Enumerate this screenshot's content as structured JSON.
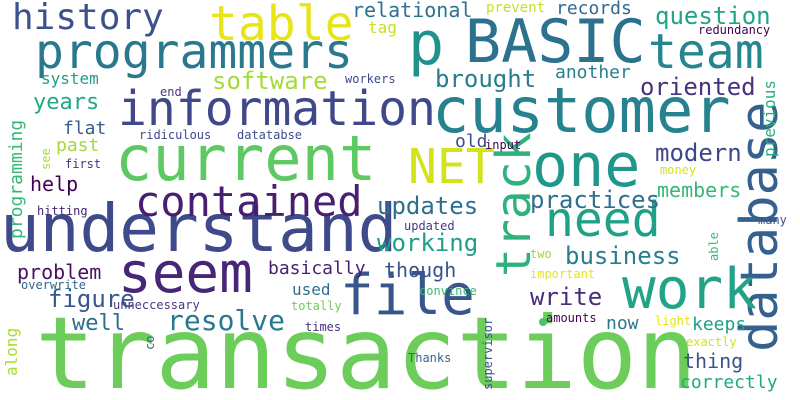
{
  "words": [
    {
      "text": "transaction",
      "color": "#6ccd5a"
    },
    {
      "text": "understand",
      "color": "#3e4a89"
    },
    {
      "text": "current",
      "color": "#5ec962"
    },
    {
      "text": "customer",
      "color": "#26828e"
    },
    {
      "text": "information",
      "color": "#3f4889"
    },
    {
      "text": "programmers",
      "color": "#2a788e"
    },
    {
      "text": "BASIC",
      "color": "#2c718e"
    },
    {
      "text": "one",
      "color": "#1f988b"
    },
    {
      "text": "seem",
      "color": "#482677"
    },
    {
      "text": "database",
      "color": "#34618d"
    },
    {
      "text": "file",
      "color": "#39568c"
    },
    {
      "text": "work",
      "color": "#20a386"
    },
    {
      "text": "p",
      "color": "#21918c"
    },
    {
      "text": "track",
      "color": "#2db27d"
    },
    {
      "text": "team",
      "color": "#24868e"
    },
    {
      "text": "table",
      "color": "#e7e419"
    },
    {
      "text": "NET",
      "color": "#d2e21b"
    },
    {
      "text": "need",
      "color": "#1fa187"
    },
    {
      "text": "contained",
      "color": "#481f70"
    },
    {
      "text": "history",
      "color": "#3b528b"
    },
    {
      "text": "resolve",
      "color": "#2a788e"
    },
    {
      "text": "software",
      "color": "#a5db36"
    },
    {
      "text": "oriented",
      "color": "#46337e"
    },
    {
      "text": "question",
      "color": "#20a386"
    },
    {
      "text": "updates",
      "color": "#2d708e"
    },
    {
      "text": "modern",
      "color": "#3f4788"
    },
    {
      "text": "working",
      "color": "#1f9e89"
    },
    {
      "text": "write",
      "color": "#472d7b"
    },
    {
      "text": "business",
      "color": "#287d8e"
    },
    {
      "text": "practices",
      "color": "#2e6f8e"
    },
    {
      "text": "brought",
      "color": "#287c8e"
    },
    {
      "text": "figure",
      "color": "#38588c"
    },
    {
      "text": "years",
      "color": "#22a884"
    },
    {
      "text": "problem",
      "color": "#471164"
    },
    {
      "text": "relational",
      "color": "#2c728e"
    },
    {
      "text": "basically",
      "color": "#482173"
    },
    {
      "text": "though",
      "color": "#3a548c"
    },
    {
      "text": "well",
      "color": "#2d708e"
    },
    {
      "text": "members",
      "color": "#35b779"
    },
    {
      "text": "programming",
      "color": "#35b779"
    },
    {
      "text": "help",
      "color": "#440154"
    },
    {
      "text": "thing",
      "color": "#3b528b"
    },
    {
      "text": "keeps",
      "color": "#1fa088"
    },
    {
      "text": "correctly",
      "color": "#22a785"
    },
    {
      "text": "now",
      "color": "#297a8e"
    },
    {
      "text": "records",
      "color": "#31688e"
    },
    {
      "text": "flat",
      "color": "#365d8d"
    },
    {
      "text": "past",
      "color": "#9fda3a"
    },
    {
      "text": "along",
      "color": "#a8db34"
    },
    {
      "text": "another",
      "color": "#27808e"
    },
    {
      "text": "old",
      "color": "#3c4f8a"
    },
    {
      "text": "used",
      "color": "#2e6e8e"
    },
    {
      "text": "system",
      "color": "#1f9e89"
    },
    {
      "text": "previous",
      "color": "#2ab07f"
    },
    {
      "text": "tag",
      "color": "#c8e020"
    },
    {
      "text": "prevent",
      "color": "#c2df23"
    },
    {
      "text": "redundancy",
      "color": "#440154"
    },
    {
      "text": "workers",
      "color": "#3e4a89"
    },
    {
      "text": "end",
      "color": "#453882"
    },
    {
      "text": "ridiculous",
      "color": "#3f4788"
    },
    {
      "text": "datatabse",
      "color": "#3c4f8a"
    },
    {
      "text": "see",
      "color": "#a0da39"
    },
    {
      "text": "first",
      "color": "#46307e"
    },
    {
      "text": "hitting",
      "color": "#482475"
    },
    {
      "text": "updated",
      "color": "#443983"
    },
    {
      "text": "input",
      "color": "#440154"
    },
    {
      "text": "money",
      "color": "#d8e219"
    },
    {
      "text": "two",
      "color": "#9bd93c"
    },
    {
      "text": "important",
      "color": "#e5e419"
    },
    {
      "text": "overwrite",
      "color": "#31668e"
    },
    {
      "text": "unneccessary",
      "color": "#453781"
    },
    {
      "text": "totally",
      "color": "#6ece58"
    },
    {
      "text": "convince",
      "color": "#3aba76"
    },
    {
      "text": "times",
      "color": "#46327e"
    },
    {
      "text": "co",
      "color": "#33638d"
    },
    {
      "text": "Thanks",
      "color": "#33638d"
    },
    {
      "text": "supervisor",
      "color": "#3c508b"
    },
    {
      "text": "amounts",
      "color": "#440154"
    },
    {
      "text": "light",
      "color": "#e2e418"
    },
    {
      "text": "exactly",
      "color": "#d2e21b"
    },
    {
      "text": "able",
      "color": "#3aba76"
    },
    {
      "text": "many",
      "color": "#3b528b"
    }
  ],
  "dots": [
    {
      "color": "#4ac16d"
    }
  ]
}
